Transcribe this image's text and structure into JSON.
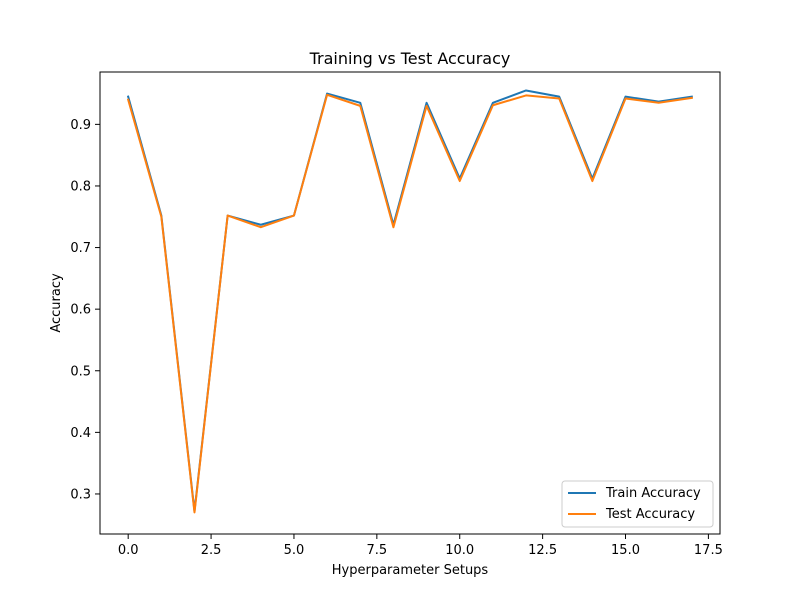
{
  "chart_data": {
    "type": "line",
    "title": "Training vs Test Accuracy",
    "xlabel": "Hyperparameter Setups",
    "ylabel": "Accuracy",
    "xlim": [
      -0.85,
      17.85
    ],
    "ylim": [
      0.235,
      0.985
    ],
    "x_ticks": [
      0.0,
      2.5,
      5.0,
      7.5,
      10.0,
      12.5,
      15.0,
      17.5
    ],
    "x_tick_labels": [
      "0.0",
      "2.5",
      "5.0",
      "7.5",
      "10.0",
      "12.5",
      "15.0",
      "17.5"
    ],
    "y_ticks": [
      0.3,
      0.4,
      0.5,
      0.6,
      0.7,
      0.8,
      0.9
    ],
    "y_tick_labels": [
      "0.3",
      "0.4",
      "0.5",
      "0.6",
      "0.7",
      "0.8",
      "0.9"
    ],
    "grid": false,
    "legend_position": "lower right",
    "x": [
      0,
      1,
      2,
      3,
      4,
      5,
      6,
      7,
      8,
      9,
      10,
      11,
      12,
      13,
      14,
      15,
      16,
      17
    ],
    "series": [
      {
        "name": "Train Accuracy",
        "color": "#1f77b4",
        "values": [
          0.945,
          0.752,
          0.272,
          0.752,
          0.737,
          0.752,
          0.95,
          0.935,
          0.737,
          0.935,
          0.812,
          0.935,
          0.955,
          0.945,
          0.812,
          0.945,
          0.937,
          0.945
        ]
      },
      {
        "name": "Test Accuracy",
        "color": "#ff7f0e",
        "values": [
          0.94,
          0.75,
          0.27,
          0.752,
          0.733,
          0.752,
          0.948,
          0.93,
          0.733,
          0.93,
          0.808,
          0.931,
          0.947,
          0.942,
          0.808,
          0.942,
          0.935,
          0.943
        ]
      }
    ]
  }
}
